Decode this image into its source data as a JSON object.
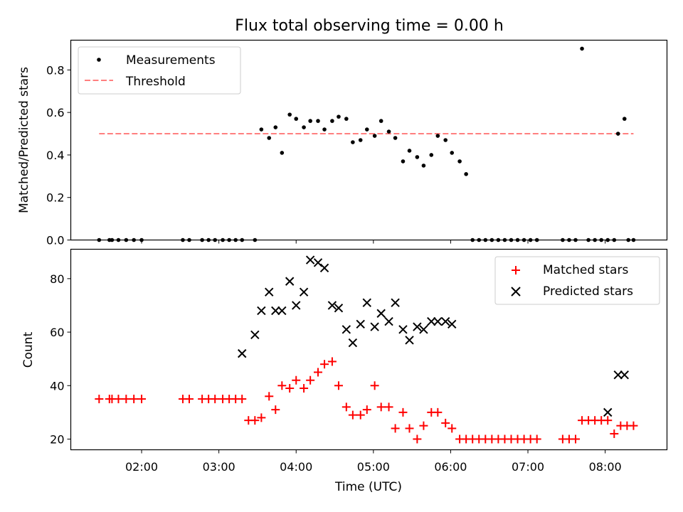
{
  "figure": {
    "title": "Flux total observing time = 0.00 h"
  },
  "chart_data": [
    {
      "type": "scatter",
      "title": "Flux total observing time = 0.00 h",
      "xlabel": "",
      "ylabel": "Matched/Predicted stars",
      "xlim": [
        "01:05",
        "08:48"
      ],
      "ylim": [
        0.0,
        0.94
      ],
      "yticks": [
        "0.0",
        "0.2",
        "0.4",
        "0.6",
        "0.8"
      ],
      "grid": false,
      "legend_position": "top-left",
      "series": [
        {
          "name": "Measurements",
          "color": "#000000",
          "marker": "dot",
          "x": [
            "01:27",
            "01:35",
            "01:37",
            "01:42",
            "01:48",
            "01:54",
            "02:00",
            "02:32",
            "02:37",
            "02:47",
            "02:52",
            "02:57",
            "03:03",
            "03:08",
            "03:13",
            "03:18",
            "03:28",
            "03:33",
            "03:39",
            "03:44",
            "03:49",
            "03:55",
            "04:00",
            "04:06",
            "04:11",
            "04:17",
            "04:22",
            "04:28",
            "04:33",
            "04:39",
            "04:44",
            "04:50",
            "04:55",
            "05:01",
            "05:06",
            "05:12",
            "05:17",
            "05:23",
            "05:28",
            "05:34",
            "05:39",
            "05:45",
            "05:50",
            "05:56",
            "06:01",
            "06:07",
            "06:12",
            "06:17",
            "06:22",
            "06:27",
            "06:32",
            "06:37",
            "06:42",
            "06:47",
            "06:52",
            "06:57",
            "07:02",
            "07:07",
            "07:27",
            "07:32",
            "07:37",
            "07:42",
            "07:47",
            "07:52",
            "07:57",
            "08:02",
            "08:07",
            "08:10",
            "08:15",
            "08:18",
            "08:22"
          ],
          "y": [
            0.0,
            0.0,
            0.0,
            0.0,
            0.0,
            0.0,
            0.0,
            0.0,
            0.0,
            0.0,
            0.0,
            0.0,
            0.0,
            0.0,
            0.0,
            0.0,
            0.0,
            0.52,
            0.48,
            0.53,
            0.41,
            0.59,
            0.57,
            0.53,
            0.56,
            0.56,
            0.52,
            0.56,
            0.58,
            0.57,
            0.46,
            0.47,
            0.52,
            0.49,
            0.56,
            0.51,
            0.48,
            0.37,
            0.42,
            0.39,
            0.35,
            0.4,
            0.49,
            0.47,
            0.41,
            0.37,
            0.31,
            0.0,
            0.0,
            0.0,
            0.0,
            0.0,
            0.0,
            0.0,
            0.0,
            0.0,
            0.0,
            0.0,
            0.0,
            0.0,
            0.0,
            0.9,
            0.0,
            0.0,
            0.0,
            0.0,
            0.0,
            0.5,
            0.57,
            0.0,
            0.0
          ]
        },
        {
          "name": "Threshold",
          "color": "#ff7f7f",
          "style": "dashed",
          "x": [
            "01:27",
            "08:22"
          ],
          "y": [
            0.5,
            0.5
          ]
        }
      ]
    },
    {
      "type": "scatter",
      "xlabel": "Time (UTC)",
      "ylabel": "Count",
      "xlim": [
        "01:05",
        "08:48"
      ],
      "ylim": [
        16,
        91
      ],
      "xticks": [
        "02:00",
        "03:00",
        "04:00",
        "05:00",
        "06:00",
        "07:00",
        "08:00"
      ],
      "yticks": [
        "20",
        "40",
        "60",
        "80"
      ],
      "grid": false,
      "legend_position": "top-right",
      "series": [
        {
          "name": "Matched stars",
          "color": "#ff0000",
          "marker": "plus",
          "x": [
            "01:27",
            "01:35",
            "01:37",
            "01:42",
            "01:48",
            "01:54",
            "02:00",
            "02:32",
            "02:37",
            "02:47",
            "02:52",
            "02:57",
            "03:03",
            "03:08",
            "03:13",
            "03:18",
            "03:23",
            "03:28",
            "03:33",
            "03:39",
            "03:44",
            "03:49",
            "03:55",
            "04:00",
            "04:06",
            "04:11",
            "04:17",
            "04:22",
            "04:28",
            "04:33",
            "04:39",
            "04:44",
            "04:50",
            "04:55",
            "05:01",
            "05:06",
            "05:12",
            "05:17",
            "05:23",
            "05:28",
            "05:34",
            "05:39",
            "05:45",
            "05:50",
            "05:56",
            "06:01",
            "06:07",
            "06:12",
            "06:17",
            "06:22",
            "06:27",
            "06:32",
            "06:37",
            "06:42",
            "06:47",
            "06:52",
            "06:57",
            "07:02",
            "07:07",
            "07:27",
            "07:32",
            "07:37",
            "07:42",
            "07:47",
            "07:52",
            "07:57",
            "08:02",
            "08:07",
            "08:12",
            "08:17",
            "08:22"
          ],
          "y": [
            35,
            35,
            35,
            35,
            35,
            35,
            35,
            35,
            35,
            35,
            35,
            35,
            35,
            35,
            35,
            35,
            27,
            27,
            28,
            36,
            31,
            40,
            39,
            42,
            39,
            42,
            45,
            48,
            49,
            40,
            32,
            29,
            29,
            31,
            40,
            32,
            32,
            24,
            30,
            24,
            20,
            25,
            30,
            30,
            26,
            24,
            20,
            20,
            20,
            20,
            20,
            20,
            20,
            20,
            20,
            20,
            20,
            20,
            20,
            20,
            20,
            20,
            27,
            27,
            27,
            27,
            27,
            22,
            25,
            25,
            25
          ]
        },
        {
          "name": "Predicted stars",
          "color": "#000000",
          "marker": "x",
          "x": [
            "03:18",
            "03:28",
            "03:33",
            "03:39",
            "03:44",
            "03:49",
            "03:55",
            "04:00",
            "04:06",
            "04:11",
            "04:17",
            "04:22",
            "04:28",
            "04:33",
            "04:39",
            "04:44",
            "04:50",
            "04:55",
            "05:01",
            "05:06",
            "05:12",
            "05:17",
            "05:23",
            "05:28",
            "05:34",
            "05:39",
            "05:45",
            "05:50",
            "05:56",
            "06:01",
            "08:02",
            "08:10",
            "08:15"
          ],
          "y": [
            52,
            59,
            68,
            75,
            68,
            68,
            79,
            70,
            75,
            87,
            86,
            84,
            70,
            69,
            61,
            56,
            63,
            71,
            62,
            67,
            64,
            71,
            61,
            57,
            62,
            61,
            64,
            64,
            64,
            63,
            30,
            44,
            44
          ]
        }
      ]
    }
  ]
}
